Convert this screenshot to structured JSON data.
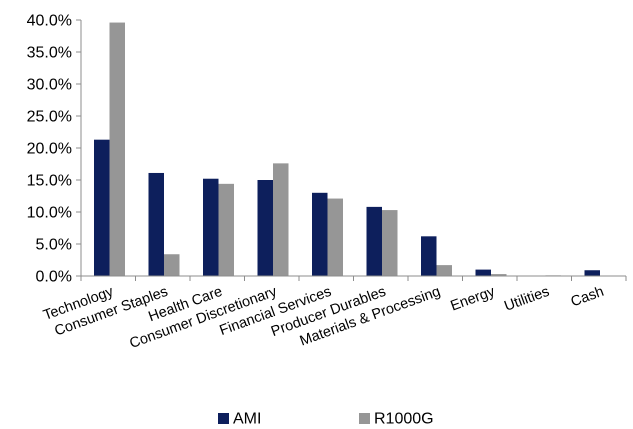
{
  "chart_data": {
    "type": "bar",
    "title": "",
    "xlabel": "",
    "ylabel": "",
    "ylim": [
      0,
      40
    ],
    "y_tick_values": [
      0,
      5,
      10,
      15,
      20,
      25,
      30,
      35,
      40
    ],
    "y_tick_labels": [
      "0.0%",
      "5.0%",
      "10.0%",
      "15.0%",
      "20.0%",
      "25.0%",
      "30.0%",
      "35.0%",
      "40.0%"
    ],
    "grid": false,
    "legend_position": "bottom",
    "categories": [
      "Technology",
      "Consumer Staples",
      "Health Care",
      "Consumer Discretionary",
      "Financial Services",
      "Producer Durables",
      "Materials & Processing",
      "Energy",
      "Utilities",
      "Cash"
    ],
    "series": [
      {
        "name": "AMI",
        "color": "#0d1f5c",
        "values": [
          21.3,
          16.1,
          15.2,
          15.0,
          13.0,
          10.8,
          6.2,
          1.0,
          0.0,
          0.9
        ]
      },
      {
        "name": "R1000G",
        "color": "#969696",
        "values": [
          39.6,
          3.4,
          14.4,
          17.6,
          12.1,
          10.3,
          1.7,
          0.3,
          0.1,
          0.0
        ]
      }
    ]
  }
}
